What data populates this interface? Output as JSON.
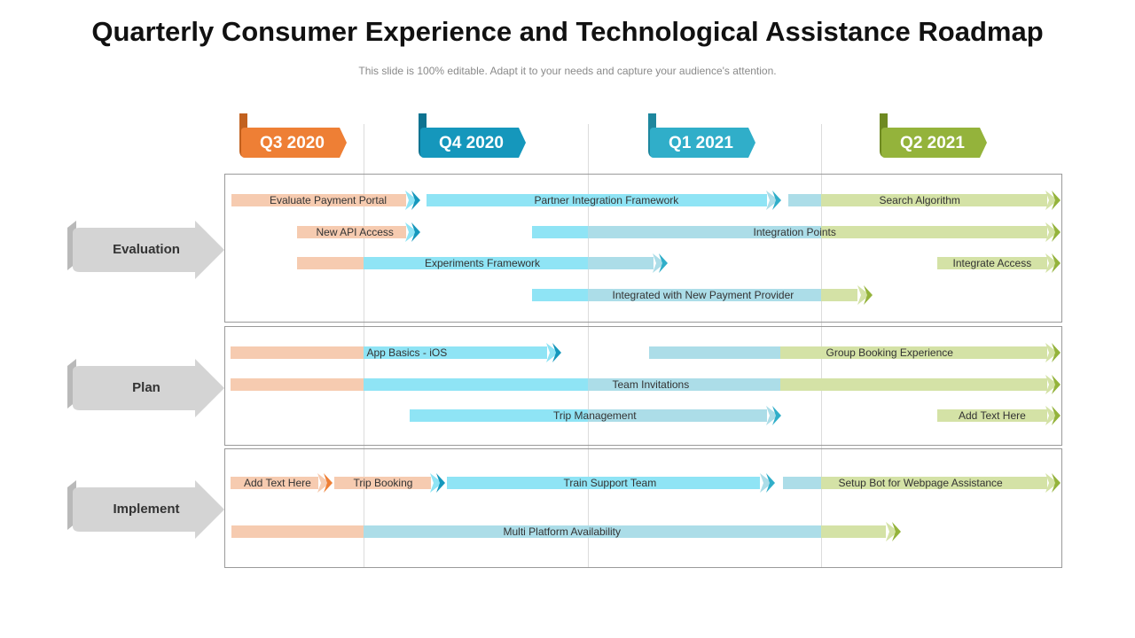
{
  "title": "Quarterly Consumer Experience and Technological Assistance Roadmap",
  "subtitle": "This slide is 100% editable. Adapt it to your needs and capture your audience's attention.",
  "colors": {
    "q3": "#ee7f35",
    "q4": "#1597bc",
    "q1": "#30aec9",
    "q2": "#94b33b"
  },
  "quarters": [
    {
      "label": "Q3 2020"
    },
    {
      "label": "Q4 2020"
    },
    {
      "label": "Q1 2021"
    },
    {
      "label": "Q2 2021"
    }
  ],
  "sections": [
    {
      "label": "Evaluation"
    },
    {
      "label": "Plan"
    },
    {
      "label": "Implement"
    }
  ],
  "bars": [
    {
      "label": "Evaluate Payment Portal",
      "name": "bar-evaluate-payment-portal"
    },
    {
      "label": "Partner Integration Framework",
      "name": "bar-partner-integration-framework"
    },
    {
      "label": "Search Algorithm",
      "name": "bar-search-algorithm"
    },
    {
      "label": "New API Access",
      "name": "bar-new-api-access"
    },
    {
      "label": "Integration Points",
      "name": "bar-integration-points"
    },
    {
      "label": "Experiments Framework",
      "name": "bar-experiments-framework"
    },
    {
      "label": "Integrate Access",
      "name": "bar-integrate-access"
    },
    {
      "label": "Integrated with New Payment Provider",
      "name": "bar-integrated-new-payment-provider"
    },
    {
      "label": "App Basics - iOS",
      "name": "bar-app-basics-ios"
    },
    {
      "label": "Group Booking Experience",
      "name": "bar-group-booking-experience"
    },
    {
      "label": "Team Invitations",
      "name": "bar-team-invitations"
    },
    {
      "label": "Trip Management",
      "name": "bar-trip-management"
    },
    {
      "label": "Add Text Here",
      "name": "bar-add-text-here-plan"
    },
    {
      "label": "Add Text Here",
      "name": "bar-add-text-here-implement"
    },
    {
      "label": "Trip Booking",
      "name": "bar-trip-booking"
    },
    {
      "label": "Train Support Team",
      "name": "bar-train-support-team"
    },
    {
      "label": "Setup Bot for Webpage Assistance",
      "name": "bar-setup-bot"
    },
    {
      "label": "Multi Platform Availability",
      "name": "bar-multi-platform-availability"
    }
  ]
}
